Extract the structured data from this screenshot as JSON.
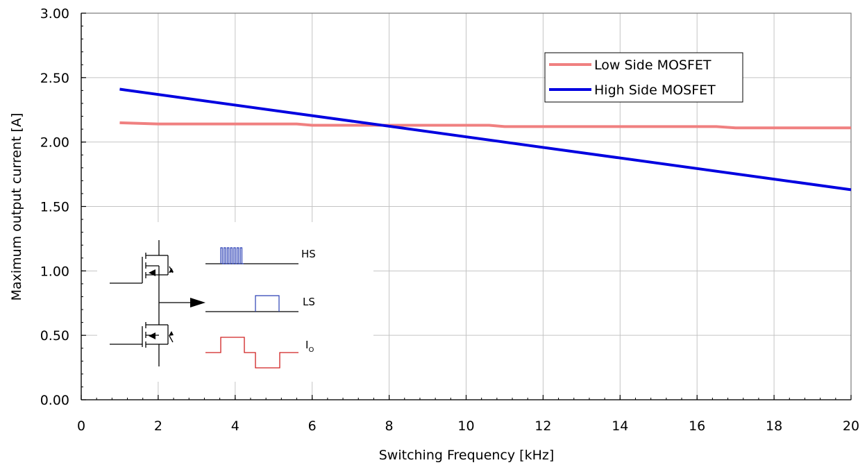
{
  "chart_data": {
    "type": "line",
    "xlabel": "Switching Frequency [kHz]",
    "ylabel": "Maximum output current [A]",
    "xlim": [
      0,
      20
    ],
    "ylim": [
      0,
      3
    ],
    "x_ticks": [
      "0",
      "2",
      "4",
      "6",
      "8",
      "10",
      "12",
      "14",
      "16",
      "18",
      "20"
    ],
    "y_ticks": [
      "0.00",
      "0.50",
      "1.00",
      "1.50",
      "2.00",
      "2.50",
      "3.00"
    ],
    "grid": true,
    "legend_position": "top-right",
    "series": [
      {
        "name": "Low Side MOSFET",
        "color": "#f08080",
        "x": [
          1,
          2,
          5.6,
          6,
          10.6,
          11,
          16.5,
          17,
          20
        ],
        "y": [
          2.15,
          2.14,
          2.14,
          2.13,
          2.13,
          2.12,
          2.12,
          2.11,
          2.11
        ]
      },
      {
        "name": "High Side MOSFET",
        "color": "#0000e0",
        "x": [
          1,
          20
        ],
        "y": [
          2.41,
          1.63
        ]
      }
    ]
  },
  "inset": {
    "hs_label": "HS",
    "ls_label": "LS",
    "io_label": "I",
    "io_subscript": "O",
    "hs_color": "#2a3fb5",
    "ls_color": "#2a3fb5",
    "io_color": "#d02020"
  }
}
